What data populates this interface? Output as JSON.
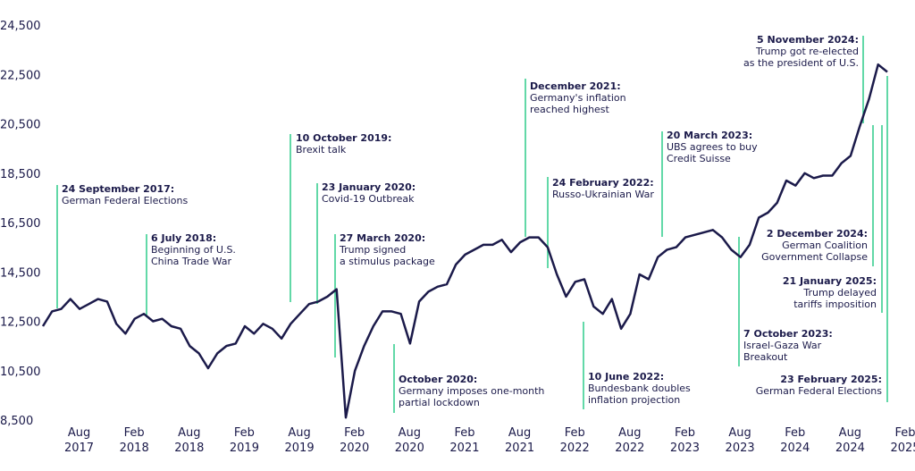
{
  "chart_data": {
    "type": "line",
    "x": [
      "2017-06",
      "2017-07",
      "2017-08",
      "2017-09",
      "2017-10",
      "2017-11",
      "2017-12",
      "2018-01",
      "2018-02",
      "2018-03",
      "2018-04",
      "2018-05",
      "2018-06",
      "2018-07",
      "2018-08",
      "2018-09",
      "2018-10",
      "2018-11",
      "2018-12",
      "2019-01",
      "2019-02",
      "2019-03",
      "2019-04",
      "2019-05",
      "2019-06",
      "2019-07",
      "2019-08",
      "2019-09",
      "2019-10",
      "2019-11",
      "2019-12",
      "2020-01",
      "2020-02",
      "2020-03",
      "2020-04",
      "2020-05",
      "2020-06",
      "2020-07",
      "2020-08",
      "2020-09",
      "2020-10",
      "2020-11",
      "2020-12",
      "2021-01",
      "2021-02",
      "2021-03",
      "2021-04",
      "2021-05",
      "2021-06",
      "2021-07",
      "2021-08",
      "2021-09",
      "2021-10",
      "2021-11",
      "2021-12",
      "2022-01",
      "2022-02",
      "2022-03",
      "2022-04",
      "2022-05",
      "2022-06",
      "2022-07",
      "2022-08",
      "2022-09",
      "2022-10",
      "2022-11",
      "2022-12",
      "2023-01",
      "2023-02",
      "2023-03",
      "2023-04",
      "2023-05",
      "2023-06",
      "2023-07",
      "2023-08",
      "2023-09",
      "2023-10",
      "2023-11",
      "2023-12",
      "2024-01",
      "2024-02",
      "2024-03",
      "2024-04",
      "2024-05",
      "2024-06",
      "2024-07",
      "2024-08",
      "2024-09",
      "2024-10",
      "2024-11",
      "2024-12",
      "2025-01",
      "2025-02"
    ],
    "series": [
      {
        "color": "#1b1a4a",
        "values": [
          12300,
          12900,
          13000,
          13400,
          13000,
          13200,
          13400,
          13300,
          12400,
          12000,
          12600,
          12800,
          12500,
          12600,
          12300,
          12200,
          11500,
          11200,
          10600,
          11200,
          11500,
          11600,
          12300,
          12000,
          12400,
          12200,
          11800,
          12400,
          12800,
          13200,
          13300,
          13500,
          13800,
          8600,
          10500,
          11500,
          12300,
          12900,
          12900,
          12800,
          11600,
          13300,
          13700,
          13900,
          14000,
          14800,
          15200,
          15400,
          15600,
          15600,
          15800,
          15300,
          15700,
          15900,
          15900,
          15500,
          14400,
          13500,
          14100,
          14200,
          13100,
          12800,
          13400,
          12200,
          12800,
          14400,
          14200,
          15100,
          15400,
          15500,
          15900,
          16000,
          16100,
          16200,
          15900,
          15400,
          15100,
          15600,
          16700,
          16900,
          17300,
          18200,
          18000,
          18500,
          18300,
          18400,
          18400,
          18900,
          19200,
          20400,
          21500,
          22900,
          22600
        ]
      }
    ],
    "ylim": [
      8500,
      24500
    ],
    "yticks": [
      {
        "value": 8500,
        "label": "8,500"
      },
      {
        "value": 10500,
        "label": "10,500"
      },
      {
        "value": 12500,
        "label": "12,500"
      },
      {
        "value": 14500,
        "label": "14,500"
      },
      {
        "value": 16500,
        "label": "16,500"
      },
      {
        "value": 18500,
        "label": "18,500"
      },
      {
        "value": 20500,
        "label": "20,500"
      },
      {
        "value": 22500,
        "label": "22,500"
      },
      {
        "value": 24500,
        "label": "24,500"
      }
    ],
    "xlim": [
      "2017-06",
      "2025-02"
    ],
    "xticks": [
      {
        "value": "2017-08",
        "label": "Aug",
        "year": "2017"
      },
      {
        "value": "2018-02",
        "label": "Feb",
        "year": "2018"
      },
      {
        "value": "2018-08",
        "label": "Aug",
        "year": "2018"
      },
      {
        "value": "2019-02",
        "label": "Feb",
        "year": "2019"
      },
      {
        "value": "2019-08",
        "label": "Aug",
        "year": "2019"
      },
      {
        "value": "2020-02",
        "label": "Feb",
        "year": "2020"
      },
      {
        "value": "2020-08",
        "label": "Aug",
        "year": "2020"
      },
      {
        "value": "2021-02",
        "label": "Feb",
        "year": "2021"
      },
      {
        "value": "2021-08",
        "label": "Aug",
        "year": "2021"
      },
      {
        "value": "2022-02",
        "label": "Feb",
        "year": "2022"
      },
      {
        "value": "2022-08",
        "label": "Aug",
        "year": "2022"
      },
      {
        "value": "2023-02",
        "label": "Feb",
        "year": "2023"
      },
      {
        "value": "2023-08",
        "label": "Aug",
        "year": "2023"
      },
      {
        "value": "2024-02",
        "label": "Feb",
        "year": "2024"
      },
      {
        "value": "2024-08",
        "label": "Aug",
        "year": "2024"
      },
      {
        "value": "2025-02",
        "label": "Feb",
        "year": "2025"
      }
    ],
    "annotation_color": "#2ecc8a",
    "annotations": [
      {
        "title": "24 September 2017:",
        "text": [
          "German Federal Elections"
        ]
      },
      {
        "title": "6 July 2018:",
        "text": [
          "Beginning of U.S.",
          "China Trade War"
        ]
      },
      {
        "title": "10 October 2019:",
        "text": [
          "Brexit talk"
        ]
      },
      {
        "title": "23 January 2020:",
        "text": [
          "Covid-19 Outbreak"
        ]
      },
      {
        "title": "27 March 2020:",
        "text": [
          "Trump signed",
          "a stimulus package"
        ]
      },
      {
        "title": "October 2020:",
        "text": [
          "Germany imposes one-month",
          "partial lockdown"
        ]
      },
      {
        "title": "December 2021:",
        "text": [
          "Germany's inflation",
          "reached highest"
        ]
      },
      {
        "title": "24 February 2022:",
        "text": [
          "Russo-Ukrainian War"
        ]
      },
      {
        "title": "10 June 2022:",
        "text": [
          "Bundesbank doubles",
          "inflation projection"
        ]
      },
      {
        "title": "20 March 2023:",
        "text": [
          "UBS agrees to buy",
          "Credit Suisse"
        ]
      },
      {
        "title": "7 October 2023:",
        "text": [
          "Israel-Gaza War",
          "Breakout"
        ]
      },
      {
        "title": "5 November 2024:",
        "text": [
          "Trump got re-elected",
          "as the president of U.S."
        ]
      },
      {
        "title": "2 December 2024:",
        "text": [
          "German Coalition",
          "Government Collapse"
        ]
      },
      {
        "title": "21 January 2025:",
        "text": [
          "Trump delayed",
          "tariffs imposition"
        ]
      },
      {
        "title": "23 February 2025:",
        "text": [
          "German Federal Elections"
        ]
      }
    ]
  }
}
